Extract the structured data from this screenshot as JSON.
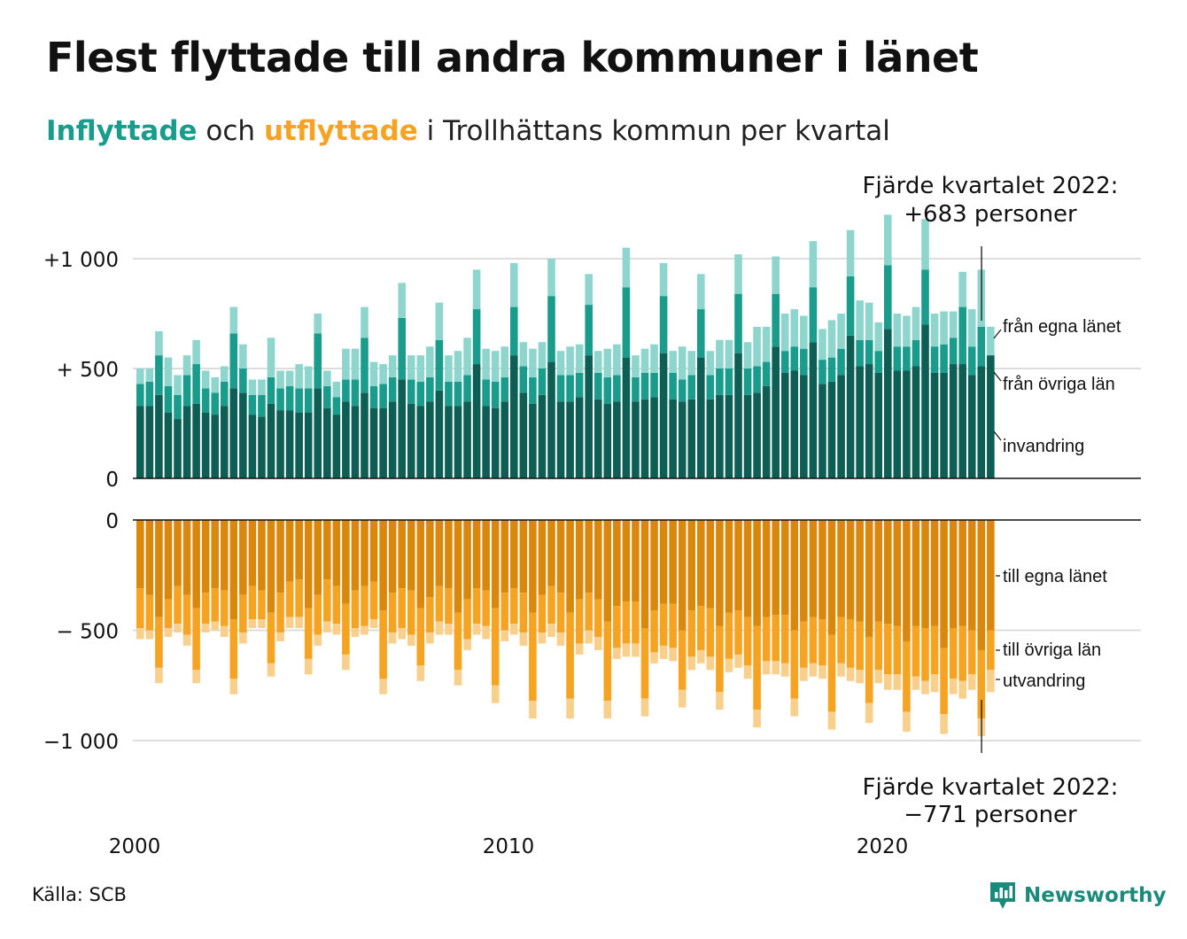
{
  "title": "Flest flyttade till andra kommuner i länet",
  "subtitle": {
    "word_in": "Inflyttade",
    "middle": " och ",
    "word_out": "utflyttade",
    "rest": " i Trollhättans kommun per kvartal"
  },
  "annotations": {
    "top_line1": "Fjärde kvartalet 2022:",
    "top_line2": "+683 personer",
    "bottom_line1": "Fjärde kvartalet 2022:",
    "bottom_line2": "−771 personer"
  },
  "source": "Källa: SCB",
  "logo_text": "Newsworthy",
  "logo_icon": "newsworthy-bar-chart-icon",
  "colors": {
    "in_egna": "#0d5e54",
    "in_ovriga": "#1a9c8c",
    "in_invandring": "#8ed6cd",
    "out_egna": "#d9880b",
    "out_ovriga": "#f5a321",
    "out_utvandring": "#f9d08b",
    "grid": "#dddddd",
    "axis": "#111111"
  },
  "chart_data": {
    "type": "bar",
    "stacked": true,
    "x_label_ticks": [
      "2000",
      "2010",
      "2020"
    ],
    "x_tick_years": [
      2000,
      2010,
      2020
    ],
    "start": "2000 Q1",
    "end": "2022 Q4",
    "panels": [
      {
        "name": "Inflyttade",
        "yticks": [
          {
            "v": 1000,
            "label": "+1 000"
          },
          {
            "v": 500,
            "label": "+  500"
          },
          {
            "v": 0,
            "label": "0"
          }
        ],
        "ylim": [
          0,
          1050
        ],
        "series_labels": [
          "från egna länet",
          "från övriga län",
          "invandring"
        ],
        "series": [
          {
            "name": "från egna länet",
            "values": [
              330,
              330,
              380,
              300,
              270,
              330,
              340,
              300,
              290,
              330,
              410,
              390,
              290,
              280,
              340,
              310,
              310,
              300,
              300,
              410,
              320,
              290,
              350,
              330,
              390,
              320,
              320,
              350,
              450,
              340,
              330,
              350,
              400,
              330,
              330,
              350,
              520,
              330,
              320,
              350,
              560,
              390,
              340,
              380,
              530,
              350,
              350,
              370,
              560,
              360,
              340,
              350,
              550,
              350,
              360,
              370,
              570,
              360,
              350,
              360,
              550,
              360,
              380,
              380,
              570,
              380,
              390,
              420,
              600,
              480,
              490,
              470,
              620,
              430,
              440,
              470,
              650,
              510,
              520,
              480,
              680,
              490,
              490,
              510,
              700,
              480,
              480,
              520,
              520,
              470,
              510,
              560
            ]
          },
          {
            "name": "från övriga län",
            "values": [
              100,
              110,
              180,
              120,
              110,
              140,
              180,
              110,
              100,
              110,
              250,
              110,
              90,
              100,
              120,
              100,
              110,
              110,
              110,
              250,
              100,
              80,
              100,
              120,
              250,
              100,
              110,
              110,
              280,
              110,
              110,
              110,
              230,
              110,
              110,
              120,
              250,
              120,
              120,
              110,
              220,
              120,
              120,
              120,
              300,
              120,
              120,
              110,
              230,
              120,
              120,
              120,
              320,
              110,
              120,
              110,
              260,
              120,
              100,
              110,
              220,
              110,
              120,
              120,
              270,
              120,
              120,
              110,
              240,
              100,
              110,
              120,
              250,
              110,
              110,
              120,
              270,
              120,
              110,
              100,
              290,
              110,
              110,
              120,
              250,
              120,
              130,
              120,
              260,
              130,
              180,
              0
            ]
          },
          {
            "name": "invandring",
            "values": [
              70,
              60,
              110,
              130,
              90,
              90,
              110,
              80,
              70,
              70,
              120,
              110,
              70,
              70,
              180,
              80,
              70,
              110,
              100,
              90,
              70,
              70,
              140,
              140,
              140,
              110,
              90,
              100,
              160,
              110,
              120,
              140,
              170,
              120,
              140,
              170,
              180,
              140,
              140,
              140,
              200,
              110,
              130,
              120,
              170,
              110,
              130,
              130,
              140,
              100,
              130,
              140,
              180,
              100,
              110,
              130,
              150,
              100,
              150,
              110,
              160,
              110,
              130,
              130,
              180,
              120,
              180,
              160,
              170,
              170,
              170,
              150,
              210,
              140,
              170,
              160,
              210,
              180,
              170,
              130,
              230,
              150,
              140,
              150,
              230,
              150,
              150,
              120,
              160,
              170,
              260,
              130
            ]
          }
        ]
      },
      {
        "name": "Utflyttade",
        "yticks": [
          {
            "v": 0,
            "label": "0"
          },
          {
            "v": -500,
            "label": "−  500"
          },
          {
            "v": -1000,
            "label": "−1 000"
          }
        ],
        "ylim": [
          -1050,
          0
        ],
        "series_labels": [
          "till egna länet",
          "till övriga län",
          "utvandring"
        ],
        "series": [
          {
            "name": "till egna länet",
            "values": [
              -310,
              -340,
              -440,
              -360,
              -300,
              -340,
              -400,
              -330,
              -310,
              -320,
              -450,
              -340,
              -300,
              -320,
              -420,
              -330,
              -280,
              -270,
              -400,
              -340,
              -270,
              -300,
              -380,
              -320,
              -300,
              -280,
              -410,
              -330,
              -310,
              -320,
              -400,
              -350,
              -300,
              -310,
              -420,
              -360,
              -310,
              -320,
              -400,
              -330,
              -310,
              -330,
              -420,
              -340,
              -300,
              -330,
              -420,
              -360,
              -330,
              -360,
              -460,
              -390,
              -370,
              -370,
              -490,
              -410,
              -380,
              -380,
              -500,
              -410,
              -390,
              -400,
              -480,
              -420,
              -410,
              -440,
              -480,
              -440,
              -430,
              -430,
              -500,
              -460,
              -440,
              -450,
              -520,
              -440,
              -450,
              -460,
              -530,
              -460,
              -470,
              -480,
              -550,
              -480,
              -490,
              -480,
              -580,
              -490,
              -480,
              -500,
              -590,
              -500
            ]
          },
          {
            "name": "till övriga län",
            "values": [
              -180,
              -160,
              -230,
              -130,
              -170,
              -180,
              -280,
              -140,
              -150,
              -160,
              -270,
              -170,
              -150,
              -130,
              -230,
              -180,
              -160,
              -170,
              -230,
              -180,
              -190,
              -170,
              -230,
              -170,
              -180,
              -170,
              -310,
              -180,
              -180,
              -200,
              -260,
              -160,
              -160,
              -160,
              -260,
              -180,
              -160,
              -160,
              -350,
              -170,
              -160,
              -180,
              -400,
              -170,
              -170,
              -180,
              -390,
              -200,
              -170,
              -170,
              -360,
              -190,
              -190,
              -190,
              -320,
              -190,
              -190,
              -200,
              -270,
              -210,
              -200,
              -220,
              -300,
              -210,
              -200,
              -220,
              -380,
              -200,
              -210,
              -220,
              -310,
              -210,
              -210,
              -210,
              -350,
              -210,
              -220,
              -220,
              -300,
              -220,
              -230,
              -220,
              -320,
              -230,
              -240,
              -220,
              -300,
              -230,
              -250,
              -200,
              -310,
              -180
            ]
          },
          {
            "name": "utvandring",
            "values": [
              -50,
              -40,
              -70,
              -40,
              -40,
              -50,
              -60,
              -40,
              -40,
              -50,
              -70,
              -50,
              -40,
              -40,
              -60,
              -40,
              -50,
              -50,
              -70,
              -50,
              -50,
              -50,
              -70,
              -40,
              -40,
              -40,
              -70,
              -50,
              -50,
              -50,
              -70,
              -50,
              -60,
              -50,
              -70,
              -50,
              -50,
              -60,
              -80,
              -50,
              -50,
              -60,
              -80,
              -50,
              -60,
              -60,
              -90,
              -50,
              -60,
              -60,
              -80,
              -50,
              -60,
              -60,
              -80,
              -50,
              -60,
              -60,
              -80,
              -60,
              -60,
              -60,
              -80,
              -60,
              -60,
              -60,
              -80,
              -60,
              -60,
              -60,
              -80,
              -60,
              -60,
              -60,
              -80,
              -60,
              -60,
              -60,
              -90,
              -60,
              -70,
              -70,
              -90,
              -60,
              -60,
              -80,
              -90,
              -70,
              -80,
              -70,
              -80,
              -100
            ]
          }
        ]
      }
    ]
  }
}
